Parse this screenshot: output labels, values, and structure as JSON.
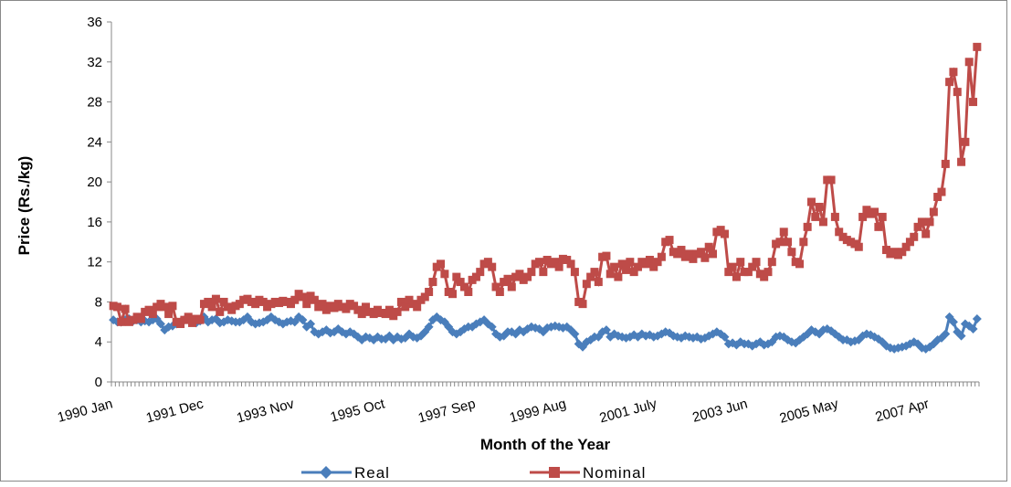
{
  "chart_data": {
    "type": "line",
    "x_label": "Month of the Year",
    "y_label": "Price (Rs./kg)",
    "ylim": [
      0,
      36
    ],
    "yticks": [
      0,
      4,
      8,
      12,
      16,
      20,
      24,
      28,
      32,
      36
    ],
    "legend": "bottom",
    "categories": [
      "1990 Jan",
      null,
      null,
      null,
      null,
      null,
      null,
      null,
      null,
      null,
      null,
      null,
      null,
      null,
      null,
      null,
      null,
      null,
      null,
      null,
      null,
      null,
      null,
      "1991 Dec",
      null,
      null,
      null,
      null,
      null,
      null,
      null,
      null,
      null,
      null,
      null,
      null,
      null,
      null,
      null,
      null,
      null,
      null,
      null,
      null,
      null,
      null,
      "1993 Nov",
      null,
      null,
      null,
      null,
      null,
      null,
      null,
      null,
      null,
      null,
      null,
      null,
      null,
      null,
      null,
      null,
      null,
      null,
      null,
      null,
      null,
      null,
      "1995 Oct",
      null,
      null,
      null,
      null,
      null,
      null,
      null,
      null,
      null,
      null,
      null,
      null,
      null,
      null,
      null,
      null,
      null,
      null,
      null,
      null,
      null,
      null,
      "1997 Sep",
      null,
      null,
      null,
      null,
      null,
      null,
      null,
      null,
      null,
      null,
      null,
      null,
      null,
      null,
      null,
      null,
      null,
      null,
      null,
      null,
      null,
      null,
      "1999 Aug",
      null,
      null,
      null,
      null,
      null,
      null,
      null,
      null,
      null,
      null,
      null,
      null,
      null,
      null,
      null,
      null,
      null,
      null,
      null,
      null,
      null,
      null,
      "2001 July",
      null,
      null,
      null,
      null,
      null,
      null,
      null,
      null,
      null,
      null,
      null,
      null,
      null,
      null,
      null,
      null,
      null,
      null,
      null,
      null,
      null,
      null,
      "2003 Jun",
      null,
      null,
      null,
      null,
      null,
      null,
      null,
      null,
      null,
      null,
      null,
      null,
      null,
      null,
      null,
      null,
      null,
      null,
      null,
      null,
      null,
      null,
      "2005 May",
      null,
      null,
      null,
      null,
      null,
      null,
      null,
      null,
      null,
      null,
      null,
      null,
      null,
      null,
      null,
      null,
      null,
      null,
      null,
      null,
      null,
      null,
      "2007 Apr",
      null,
      null,
      null,
      null,
      null,
      null,
      null,
      null,
      null,
      null,
      null,
      null
    ],
    "series": [
      {
        "name": "Real",
        "color": "#4a7ebb",
        "marker": "diamond",
        "values": [
          6.2,
          6,
          6,
          6.2,
          6.3,
          6.1,
          6.2,
          6,
          6.1,
          6,
          6.2,
          6.3,
          5.8,
          5.2,
          5.5,
          5.6,
          5.8,
          6,
          6.2,
          6.3,
          6,
          5.9,
          6.1,
          6.5,
          6,
          6.2,
          6.3,
          5.9,
          6,
          6.2,
          6.1,
          6,
          6,
          6.2,
          6.5,
          6,
          5.8,
          5.9,
          6,
          6.2,
          6.5,
          6.2,
          6,
          5.8,
          6,
          6.1,
          6,
          6.5,
          6.2,
          5.5,
          5.8,
          5,
          4.8,
          5,
          5.2,
          4.9,
          5,
          5.3,
          5,
          4.8,
          5,
          4.8,
          4.5,
          4.2,
          4.5,
          4.4,
          4.2,
          4.5,
          4.3,
          4.3,
          4.6,
          4.2,
          4.5,
          4.3,
          4.4,
          4.8,
          4.5,
          4.4,
          4.6,
          5,
          5.5,
          6.2,
          6.5,
          6.2,
          6,
          5.5,
          5,
          4.8,
          5,
          5.3,
          5.5,
          5.5,
          5.8,
          6,
          6.2,
          5.8,
          5.5,
          4.8,
          4.5,
          4.6,
          5,
          5,
          4.8,
          5.2,
          5,
          5.3,
          5.5,
          5.4,
          5.3,
          5,
          5.4,
          5.5,
          5.6,
          5.5,
          5.4,
          5.5,
          5.2,
          4.8,
          3.8,
          3.5,
          4,
          4.2,
          4.5,
          4.5,
          5,
          5.2,
          4.5,
          4.8,
          4.6,
          4.5,
          4.4,
          4.5,
          4.7,
          4.5,
          4.8,
          4.6,
          4.7,
          4.5,
          4.6,
          4.8,
          5,
          4.9,
          4.6,
          4.5,
          4.4,
          4.6,
          4.5,
          4.4,
          4.5,
          4.3,
          4.4,
          4.6,
          4.8,
          5,
          4.8,
          4.5,
          3.8,
          3.9,
          3.7,
          4,
          3.8,
          3.8,
          3.6,
          3.8,
          4,
          3.7,
          3.8,
          4,
          4.5,
          4.6,
          4.5,
          4.2,
          4,
          3.9,
          4.2,
          4.5,
          4.8,
          5.2,
          5,
          4.8,
          5.2,
          5.3,
          5.1,
          4.8,
          4.5,
          4.2,
          4.2,
          4,
          4.1,
          4.2,
          4.6,
          4.8,
          4.7,
          4.5,
          4.3,
          4,
          3.6,
          3.4,
          3.3,
          3.4,
          3.5,
          3.6,
          3.8,
          4,
          3.8,
          3.4,
          3.3,
          3.5,
          3.8,
          4.2,
          4.4,
          4.8,
          6.5,
          6,
          5,
          4.6,
          5.8,
          5.6,
          5.3,
          6.3
        ]
      },
      {
        "name": "Nominal",
        "color": "#be4b48",
        "marker": "square",
        "values": [
          7.6,
          7.5,
          6,
          7.3,
          6,
          6.2,
          6.5,
          6.3,
          7,
          7.2,
          6.8,
          7.5,
          7.8,
          7.5,
          6.8,
          7.6,
          6,
          5.8,
          6.2,
          6.5,
          5.9,
          6.3,
          6.2,
          7.8,
          8,
          7.5,
          8.3,
          7,
          8,
          7.5,
          7.2,
          7.6,
          7.8,
          8.2,
          8.3,
          8,
          7.8,
          8.2,
          8,
          7.5,
          7.8,
          8,
          7.9,
          8.1,
          8,
          7.8,
          8.2,
          8.8,
          8.5,
          7.8,
          8.6,
          8.2,
          7.5,
          7.8,
          7.2,
          7.6,
          7.4,
          7.8,
          7.5,
          7.3,
          7.8,
          7.6,
          7.2,
          6.8,
          7.5,
          7,
          6.8,
          7.2,
          6.9,
          6.8,
          7.2,
          6.6,
          7,
          8,
          7.5,
          8.2,
          7.8,
          7.5,
          8.2,
          8.5,
          9,
          10,
          11.5,
          11.8,
          10.8,
          9,
          8.8,
          10.5,
          10,
          9.5,
          9,
          10.2,
          10.5,
          11,
          11.8,
          12,
          11.5,
          9.5,
          9,
          10,
          10.3,
          9.5,
          10.5,
          10.8,
          10.2,
          10.5,
          11,
          11.8,
          12,
          11,
          12.2,
          11.8,
          12,
          11.5,
          12.3,
          12.2,
          11.8,
          11,
          8,
          7.8,
          9.8,
          10.5,
          11,
          10,
          12.5,
          12.6,
          10.8,
          11.5,
          10.5,
          11.8,
          11.2,
          12,
          11,
          11.5,
          12,
          11.8,
          12.2,
          11.5,
          12,
          12.5,
          14,
          14.2,
          13,
          12.8,
          13.2,
          12.5,
          12.8,
          12.3,
          12.8,
          13,
          12.4,
          13.5,
          12.8,
          15,
          15.2,
          14.8,
          11,
          11.5,
          10.5,
          12,
          11,
          11,
          11.5,
          12,
          10.8,
          10.5,
          11,
          12,
          13.8,
          14,
          15,
          14,
          13,
          12,
          11.8,
          14,
          15.5,
          18,
          16.5,
          17.5,
          16,
          20.2,
          20.2,
          16.5,
          15,
          14.5,
          14.2,
          14,
          13.8,
          13.5,
          16.5,
          17.2,
          16.8,
          17,
          15.5,
          16.5,
          13.2,
          12.8,
          13,
          12.7,
          13,
          13.5,
          14,
          14.5,
          15.5,
          16,
          14.8,
          16,
          17,
          18.5,
          19,
          21.8,
          30,
          31,
          29,
          22,
          24,
          32,
          28,
          33.5
        ]
      }
    ]
  }
}
